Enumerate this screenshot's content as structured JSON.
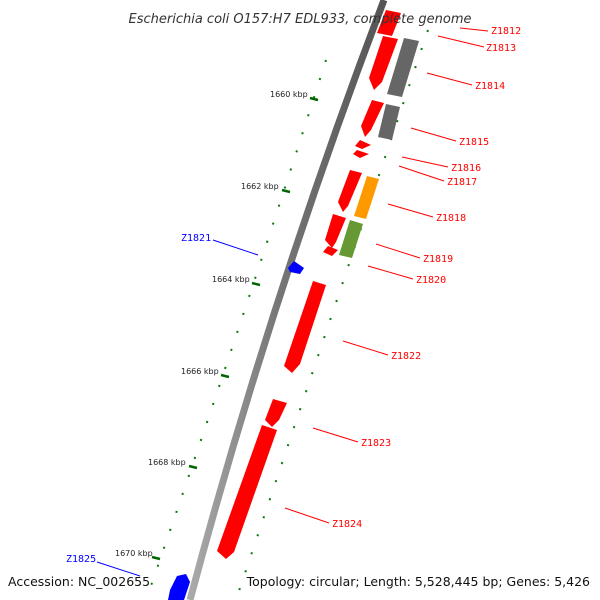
{
  "title": "Escherichia coli O157:H7 EDL933, complete genome",
  "footer": {
    "accession": "Accession: NC_002655",
    "topology": "Topology: circular; Length: 5,528,445 bp; Genes: 5,426"
  },
  "colors": {
    "forward": "#ff0000",
    "reverse": "#0000ff",
    "pseudo": "#666666",
    "orange": "#ff9900",
    "olive": "#669933",
    "tick": "#006600",
    "backbone": "#777777"
  },
  "kbp_ticks": [
    "1660 kbp",
    "1662 kbp",
    "1664 kbp",
    "1666 kbp",
    "1668 kbp",
    "1670 kbp"
  ],
  "genes": [
    {
      "id": "Z1812",
      "strand": "forward"
    },
    {
      "id": "Z1813",
      "strand": "forward"
    },
    {
      "id": "Z1814",
      "strand": "forward"
    },
    {
      "id": "Z1815",
      "strand": "forward"
    },
    {
      "id": "Z1816",
      "strand": "forward"
    },
    {
      "id": "Z1817",
      "strand": "forward"
    },
    {
      "id": "Z1818",
      "strand": "forward"
    },
    {
      "id": "Z1819",
      "strand": "forward"
    },
    {
      "id": "Z1820",
      "strand": "forward"
    },
    {
      "id": "Z1821",
      "strand": "reverse"
    },
    {
      "id": "Z1822",
      "strand": "forward"
    },
    {
      "id": "Z1823",
      "strand": "forward"
    },
    {
      "id": "Z1824",
      "strand": "forward"
    },
    {
      "id": "Z1825",
      "strand": "reverse"
    }
  ]
}
